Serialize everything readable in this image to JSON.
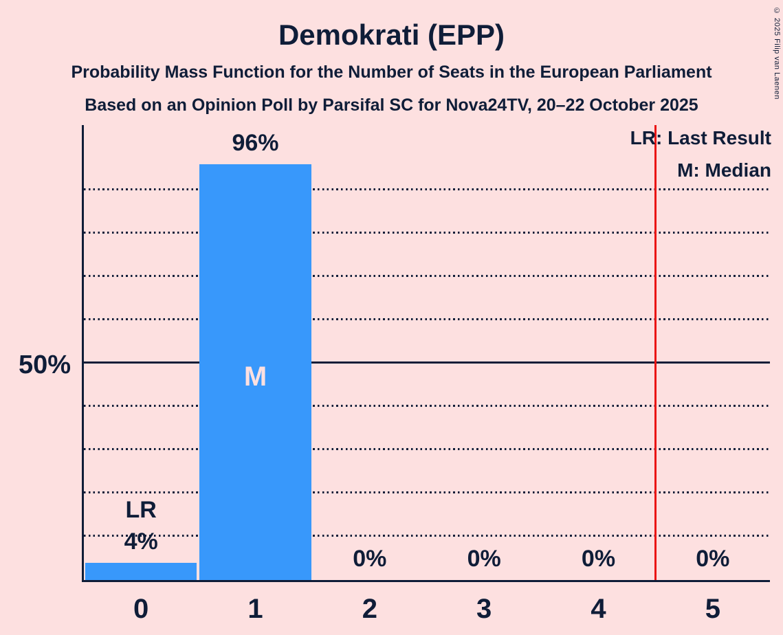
{
  "title": "Demokrati (EPP)",
  "subtitle1": "Probability Mass Function for the Number of Seats in the European Parliament",
  "subtitle2": "Based on an Opinion Poll by Parsifal SC for Nova24TV, 20–22 October 2025",
  "legend": {
    "lr": "LR: Last Result",
    "m": "M: Median"
  },
  "y_axis": {
    "label_50": "50%"
  },
  "copyright": "© 2025 Filip van Laenen",
  "colors": {
    "background": "#fde0e0",
    "bar": "#3898fb",
    "text": "#0f1d38",
    "last_result_line": "#ea1515"
  },
  "chart_data": {
    "type": "bar",
    "title": "Demokrati (EPP)",
    "xlabel": "Number of seats",
    "ylabel": "Probability",
    "categories": [
      "0",
      "1",
      "2",
      "3",
      "4",
      "5"
    ],
    "values": [
      4,
      96,
      0,
      0,
      0,
      0
    ],
    "value_labels": [
      "4%",
      "96%",
      "0%",
      "0%",
      "0%",
      "0%"
    ],
    "ylim": [
      0,
      105
    ],
    "gridlines_pct": [
      10,
      20,
      30,
      40,
      50,
      60,
      70,
      80,
      90
    ],
    "solid_gridline_pct": 50,
    "grid": "dotted",
    "legend_position": "top-right",
    "median_category": "1",
    "lr_label_category": "0",
    "last_result_line_x": 4.5,
    "annotations": {
      "lr": "LR",
      "median": "M"
    }
  }
}
